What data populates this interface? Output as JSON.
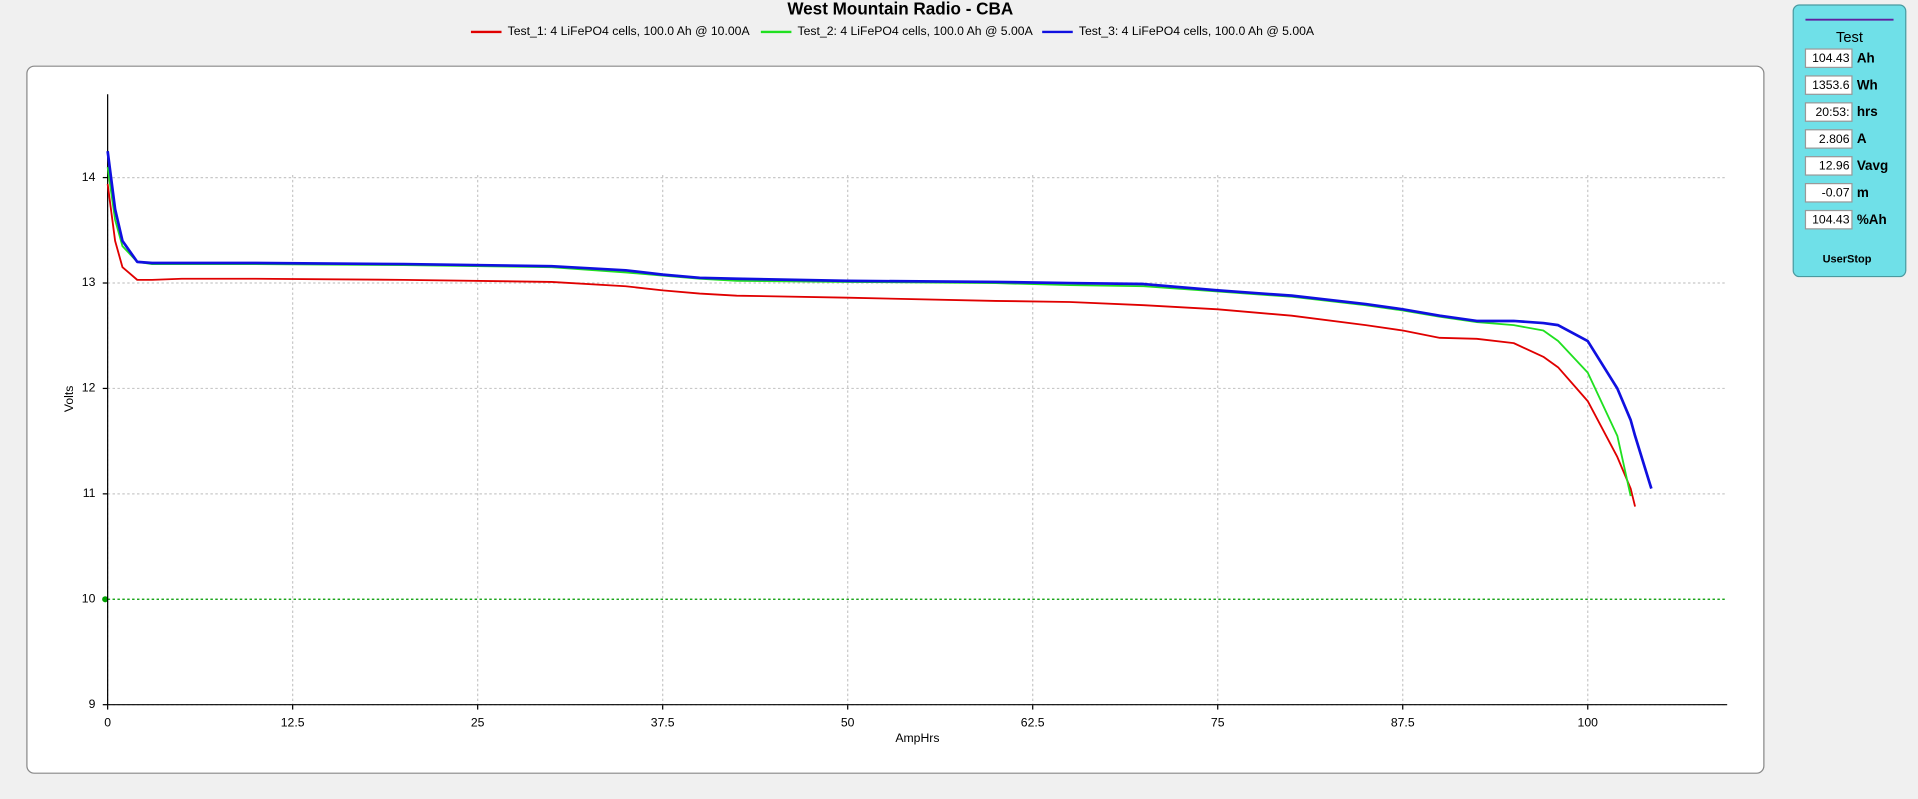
{
  "chart_data": {
    "type": "line",
    "title": "West Mountain Radio - CBA",
    "x_label": "AmpHrs",
    "y_label": "Volts",
    "x": [
      0,
      0.5,
      1,
      2,
      3,
      5,
      10,
      20,
      30,
      35,
      37.5,
      40,
      42.5,
      50,
      60,
      65,
      70,
      75,
      80,
      85,
      87.5,
      90,
      92.5,
      95,
      97,
      98,
      100,
      102,
      102.9,
      103.2,
      104.3
    ],
    "series": [
      {
        "name": "Test_1: 4 LiFePO4 cells, 100.0 Ah @ 10.00A",
        "color": "#e00000",
        "values": [
          13.94,
          13.4,
          13.15,
          13.03,
          13.03,
          13.04,
          13.04,
          13.03,
          13.01,
          12.97,
          12.93,
          12.9,
          12.88,
          12.86,
          12.83,
          12.82,
          12.79,
          12.75,
          12.69,
          12.6,
          12.55,
          12.48,
          12.47,
          12.43,
          12.3,
          12.2,
          11.88,
          11.35,
          11.05,
          10.88,
          null
        ]
      },
      {
        "name": "Test_2: 4 LiFePO4 cells, 100.0 Ah @ 5.00A",
        "color": "#20e020",
        "values": [
          14.1,
          13.6,
          13.35,
          13.2,
          13.18,
          13.18,
          13.18,
          13.17,
          13.15,
          13.1,
          13.07,
          13.04,
          13.02,
          13.01,
          13.0,
          12.98,
          12.97,
          12.92,
          12.87,
          12.79,
          12.74,
          12.68,
          12.63,
          12.6,
          12.55,
          12.45,
          12.15,
          11.55,
          10.98,
          null,
          null
        ]
      },
      {
        "name": "Test_3: 4 LiFePO4 cells, 100.0 Ah @ 5.00A",
        "color": "#1010e0",
        "values": [
          14.25,
          13.7,
          13.4,
          13.2,
          13.19,
          13.19,
          13.19,
          13.18,
          13.16,
          13.12,
          13.08,
          13.05,
          13.04,
          13.02,
          13.01,
          13.0,
          12.99,
          12.93,
          12.88,
          12.8,
          12.75,
          12.69,
          12.64,
          12.64,
          12.62,
          12.6,
          12.45,
          12.0,
          11.7,
          11.55,
          11.05
        ]
      }
    ],
    "xlim": [
      0,
      109.42
    ],
    "ylim": [
      9,
      14.79
    ],
    "xticks": [
      0,
      12.5,
      25,
      37.5,
      50,
      62.5,
      75,
      87.5,
      100
    ],
    "yticks": [
      9,
      10,
      11,
      12,
      13,
      14
    ],
    "grid": true,
    "reference_line": {
      "value": 10,
      "color": "#00a000"
    }
  },
  "panel": {
    "title": "Test",
    "fields": [
      {
        "value": "104.43",
        "unit": "Ah"
      },
      {
        "value": "1353.6",
        "unit": "Wh"
      },
      {
        "value": "20:53:",
        "unit": "hrs"
      },
      {
        "value": "2.806",
        "unit": "A"
      },
      {
        "value": "12.96",
        "unit": "Vavg"
      },
      {
        "value": "-0.07",
        "unit": "m"
      },
      {
        "value": "104.43",
        "unit": "%Ah"
      }
    ],
    "button": "UserStop"
  }
}
